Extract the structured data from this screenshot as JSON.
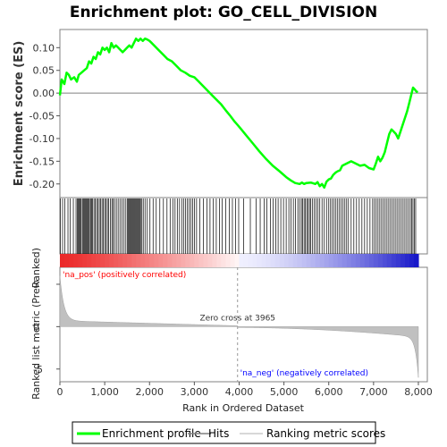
{
  "chart_data": {
    "type": "line",
    "title": "Enrichment plot: GO_CELL_DIVISION",
    "xlabel": "Rank in Ordered Dataset",
    "top_panel": {
      "ylabel": "Enrichment score (ES)",
      "ylim": [
        -0.23,
        0.14
      ],
      "yticks": [
        "0.10",
        "0.05",
        "0.00",
        "-0.05",
        "-0.10",
        "-0.15",
        "-0.20"
      ],
      "ytick_values": [
        0.1,
        0.05,
        0.0,
        -0.05,
        -0.1,
        -0.15,
        -0.2
      ],
      "series": [
        {
          "name": "Enrichment profile",
          "color": "#00ff00",
          "x": [
            0,
            40,
            100,
            150,
            200,
            250,
            320,
            380,
            420,
            480,
            540,
            600,
            650,
            700,
            750,
            800,
            850,
            900,
            950,
            1000,
            1050,
            1100,
            1150,
            1200,
            1250,
            1300,
            1350,
            1400,
            1450,
            1500,
            1550,
            1600,
            1650,
            1700,
            1750,
            1800,
            1850,
            1900,
            1950,
            2000,
            2050,
            2100,
            2200,
            2300,
            2400,
            2500,
            2600,
            2700,
            2800,
            2900,
            3000,
            3100,
            3200,
            3300,
            3400,
            3500,
            3600,
            3700,
            3800,
            3900,
            3965,
            4050,
            4150,
            4300,
            4450,
            4600,
            4750,
            4900,
            5050,
            5150,
            5250,
            5350,
            5400,
            5450,
            5500,
            5600,
            5700,
            5750,
            5800,
            5850,
            5900,
            5950,
            6000,
            6050,
            6100,
            6150,
            6200,
            6250,
            6300,
            6400,
            6500,
            6600,
            6700,
            6800,
            6900,
            7000,
            7050,
            7100,
            7150,
            7200,
            7250,
            7300,
            7350,
            7400,
            7450,
            7500,
            7550,
            7600,
            7650,
            7700,
            7750,
            7800,
            7850,
            7880,
            7920,
            7960,
            7990
          ],
          "y": [
            -0.005,
            0.03,
            0.02,
            0.045,
            0.04,
            0.03,
            0.035,
            0.025,
            0.04,
            0.045,
            0.05,
            0.055,
            0.07,
            0.065,
            0.08,
            0.075,
            0.09,
            0.085,
            0.1,
            0.095,
            0.1,
            0.09,
            0.11,
            0.1,
            0.105,
            0.1,
            0.095,
            0.09,
            0.095,
            0.1,
            0.105,
            0.1,
            0.11,
            0.12,
            0.115,
            0.12,
            0.115,
            0.12,
            0.118,
            0.115,
            0.11,
            0.105,
            0.095,
            0.085,
            0.075,
            0.07,
            0.06,
            0.05,
            0.045,
            0.038,
            0.035,
            0.025,
            0.015,
            0.005,
            -0.005,
            -0.015,
            -0.025,
            -0.038,
            -0.05,
            -0.063,
            -0.07,
            -0.08,
            -0.092,
            -0.11,
            -0.128,
            -0.145,
            -0.16,
            -0.172,
            -0.185,
            -0.192,
            -0.198,
            -0.2,
            -0.197,
            -0.2,
            -0.198,
            -0.197,
            -0.2,
            -0.196,
            -0.205,
            -0.2,
            -0.208,
            -0.195,
            -0.19,
            -0.188,
            -0.18,
            -0.175,
            -0.172,
            -0.17,
            -0.16,
            -0.155,
            -0.15,
            -0.155,
            -0.16,
            -0.158,
            -0.165,
            -0.168,
            -0.155,
            -0.14,
            -0.15,
            -0.142,
            -0.13,
            -0.11,
            -0.09,
            -0.08,
            -0.085,
            -0.09,
            -0.1,
            -0.085,
            -0.07,
            -0.055,
            -0.04,
            -0.02,
            0.0,
            0.012,
            0.008,
            0.003,
            0.002
          ]
        }
      ],
      "grid": false
    },
    "hits_panel": {
      "name": "Hits",
      "color": "#000000",
      "positions": [
        10,
        60,
        110,
        180,
        230,
        300,
        360,
        390,
        410,
        430,
        450,
        470,
        500,
        520,
        540,
        560,
        580,
        600,
        620,
        640,
        660,
        690,
        710,
        730,
        760,
        790,
        820,
        850,
        880,
        910,
        940,
        970,
        1000,
        1030,
        1060,
        1090,
        1130,
        1160,
        1190,
        1220,
        1260,
        1300,
        1340,
        1380,
        1420,
        1460,
        1500,
        1520,
        1540,
        1560,
        1580,
        1600,
        1620,
        1640,
        1660,
        1680,
        1700,
        1720,
        1740,
        1760,
        1780,
        1800,
        1830,
        1860,
        1900,
        1950,
        2010,
        2080,
        2150,
        2230,
        2310,
        2390,
        2460,
        2520,
        2570,
        2620,
        2670,
        2720,
        2760,
        2800,
        2840,
        2880,
        2920,
        2960,
        3000,
        3050,
        3120,
        3200,
        3280,
        3350,
        3420,
        3490,
        3560,
        3620,
        3700,
        3780,
        3850,
        3920,
        3990,
        4100,
        4250,
        4380,
        4470,
        4560,
        4620,
        4700,
        4760,
        4820,
        4870,
        4930,
        4990,
        5050,
        5110,
        5160,
        5210,
        5260,
        5310,
        5350,
        5390,
        5420,
        5450,
        5480,
        5510,
        5540,
        5570,
        5600,
        5640,
        5680,
        5720,
        5760,
        5800,
        5850,
        5900,
        5950,
        6000,
        6040,
        6080,
        6120,
        6160,
        6200,
        6240,
        6280,
        6320,
        6360,
        6400,
        6440,
        6500,
        6560,
        6620,
        6680,
        6740,
        6800,
        6860,
        6920,
        6980,
        7020,
        7060,
        7100,
        7140,
        7180,
        7220,
        7260,
        7300,
        7340,
        7380,
        7420,
        7460,
        7500,
        7540,
        7580,
        7620,
        7660,
        7700,
        7740,
        7780,
        7820,
        7850,
        7880,
        7910,
        7940
      ]
    },
    "ranked_panel": {
      "ylabel": "Ranked list metric (PreRanked)",
      "ylim": [
        -6.5,
        7
      ],
      "yticks": [
        "5",
        "0",
        "-5"
      ],
      "ytick_values": [
        5,
        0,
        -5
      ],
      "zero_cross_label": "Zero cross at 3965",
      "zero_cross": 3965,
      "pos_label": "'na_pos' (positively correlated)",
      "neg_label": "'na_neg' (negatively correlated)",
      "pos_color": "#ff0000",
      "neg_color": "#0000ff"
    },
    "xlim": [
      0,
      8200
    ],
    "xticks": [
      "0",
      "1,000",
      "2,000",
      "3,000",
      "4,000",
      "5,000",
      "6,000",
      "7,000",
      "8,000"
    ],
    "xtick_values": [
      0,
      1000,
      2000,
      3000,
      4000,
      5000,
      6000,
      7000,
      8000
    ],
    "n_genes": 8000,
    "legend": [
      {
        "label": "Enrichment profile",
        "color": "#00ff00"
      },
      {
        "label": "Hits",
        "color": "#808080"
      },
      {
        "label": "Ranking metric scores",
        "color": "#cccccc"
      }
    ]
  }
}
